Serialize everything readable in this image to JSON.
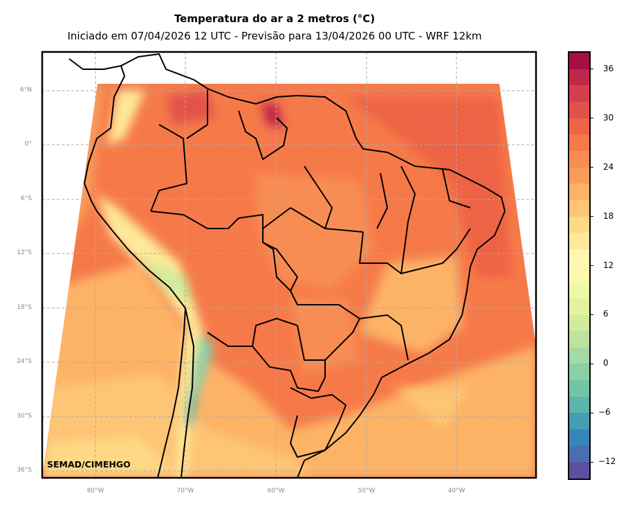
{
  "title": "Temperatura do ar a 2 metros (°C)",
  "subtitle": "Iniciado em 07/04/2026 12 UTC - Previsão para 13/04/2026 00 UTC - WRF 12km",
  "watermark": "SEMAD/CIMEHGO",
  "lat_labels": [
    "6°N",
    "0°",
    "6°S",
    "12°S",
    "18°S",
    "24°S",
    "30°S",
    "36°S"
  ],
  "lon_labels": [
    "80°W",
    "70°W",
    "60°W",
    "50°W",
    "40°W"
  ],
  "colorbar": {
    "ticks": [
      "36",
      "30",
      "24",
      "18",
      "12",
      "6",
      "0",
      "−6",
      "−12"
    ],
    "min": -14,
    "max": 38,
    "step": 2,
    "colors": [
      "#a60d45",
      "#c1274a",
      "#d53e4f",
      "#e1524a",
      "#ee6445",
      "#f67a49",
      "#f88d52",
      "#fa9c58",
      "#fdb366",
      "#fdc574",
      "#fed884",
      "#fee899",
      "#fff6b2",
      "#fbf8b0",
      "#eff8a6",
      "#e2f3a0",
      "#d0ec9c",
      "#bce49f",
      "#a4daa4",
      "#8bcfa4",
      "#72c4a5",
      "#5bb5a9",
      "#469eb2",
      "#3586bb",
      "#4a6fb0",
      "#5e4fa2"
    ]
  }
}
